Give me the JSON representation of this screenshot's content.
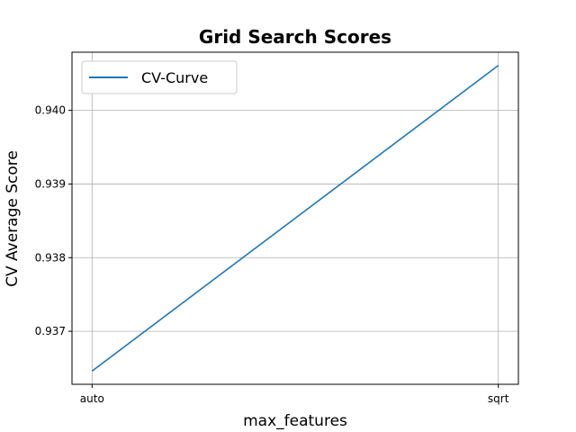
{
  "chart_data": {
    "type": "line",
    "title": "Grid Search Scores",
    "xlabel": "max_features",
    "ylabel": "CV Average Score",
    "categories": [
      "auto",
      "sqrt"
    ],
    "series": [
      {
        "name": "CV-Curve",
        "values": [
          0.93646,
          0.94061
        ],
        "color": "#1f77b4"
      }
    ],
    "ylim": [
      0.93628,
      0.94079
    ],
    "yticks": [
      0.937,
      0.938,
      0.939,
      0.94
    ],
    "ytick_labels": [
      "0.937",
      "0.938",
      "0.939",
      "0.940"
    ],
    "grid": true,
    "legend_position": "upper-left"
  }
}
